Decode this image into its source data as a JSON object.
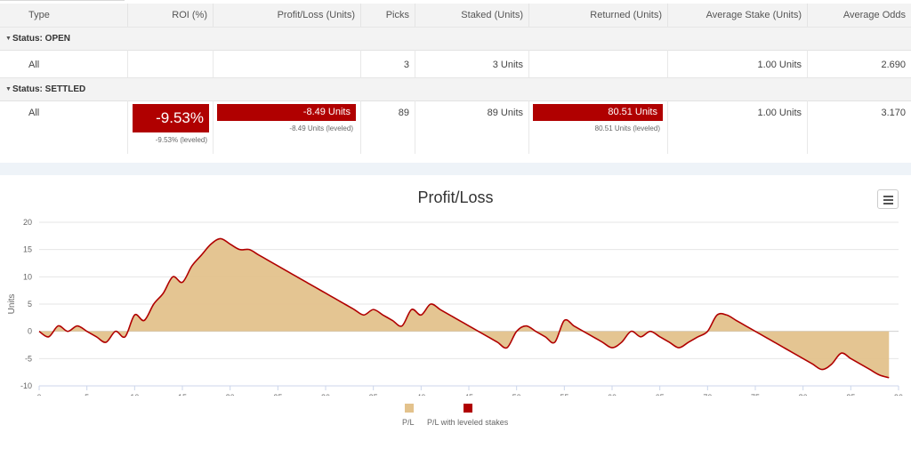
{
  "table": {
    "headers": [
      "Type",
      "ROI (%)",
      "Profit/Loss (Units)",
      "Picks",
      "Staked (Units)",
      "Returned (Units)",
      "Average Stake (Units)",
      "Average Odds"
    ],
    "groups": [
      {
        "label": "Status: OPEN",
        "row": {
          "type": "All",
          "roi": "",
          "roi_sub": "",
          "pl": "",
          "pl_sub": "",
          "picks": "3",
          "staked": "3 Units",
          "returned": "",
          "returned_sub": "",
          "avg_stake": "1.00 Units",
          "avg_odds": "2.690"
        }
      },
      {
        "label": "Status: SETTLED",
        "row": {
          "type": "All",
          "roi": "-9.53%",
          "roi_sub": "-9.53% (leveled)",
          "pl": "-8.49 Units",
          "pl_sub": "-8.49 Units (leveled)",
          "picks": "89",
          "staked": "89 Units",
          "returned": "80.51 Units",
          "returned_sub": "80.51 Units (leveled)",
          "avg_stake": "1.00 Units",
          "avg_odds": "3.170"
        }
      }
    ],
    "colors": {
      "negative_box": "#b00000"
    }
  },
  "chart": {
    "title": "Profit/Loss",
    "menu_icon": "hamburger-menu-icon"
  },
  "chart_data": {
    "type": "area",
    "title": "Profit/Loss",
    "xlabel": "",
    "ylabel": "Units",
    "xlim": [
      0,
      90
    ],
    "ylim": [
      -10,
      20
    ],
    "x_ticks": [
      0,
      5,
      10,
      15,
      20,
      25,
      30,
      35,
      40,
      45,
      50,
      55,
      60,
      65,
      70,
      75,
      80,
      85,
      90
    ],
    "y_ticks": [
      -10,
      -5,
      0,
      5,
      10,
      15,
      20
    ],
    "grid": true,
    "legend_position": "bottom-center",
    "series": [
      {
        "name": "P/L",
        "color": "#e3c28c",
        "kind": "area",
        "x": [
          0,
          1,
          2,
          3,
          4,
          5,
          6,
          7,
          8,
          9,
          10,
          11,
          12,
          13,
          14,
          15,
          16,
          17,
          18,
          19,
          20,
          21,
          22,
          23,
          24,
          25,
          26,
          27,
          28,
          29,
          30,
          31,
          32,
          33,
          34,
          35,
          36,
          37,
          38,
          39,
          40,
          41,
          42,
          43,
          44,
          45,
          46,
          47,
          48,
          49,
          50,
          51,
          52,
          53,
          54,
          55,
          56,
          57,
          58,
          59,
          60,
          61,
          62,
          63,
          64,
          65,
          66,
          67,
          68,
          69,
          70,
          71,
          72,
          73,
          74,
          75,
          76,
          77,
          78,
          79,
          80,
          81,
          82,
          83,
          84,
          85,
          86,
          87,
          88,
          89
        ],
        "y": [
          0,
          -1,
          1,
          0,
          1,
          0,
          -1,
          -2,
          0,
          -1,
          3,
          2,
          5,
          7,
          10,
          9,
          12,
          14,
          16,
          17,
          16,
          15,
          15,
          14,
          13,
          12,
          11,
          10,
          9,
          8,
          7,
          6,
          5,
          4,
          3,
          4,
          3,
          2,
          1,
          4,
          3,
          5,
          4,
          3,
          2,
          1,
          0,
          -1,
          -2,
          -3,
          0,
          1,
          0,
          -1,
          -2,
          2,
          1,
          0,
          -1,
          -2,
          -3,
          -2,
          0,
          -1,
          0,
          -1,
          -2,
          -3,
          -2,
          -1,
          0,
          3,
          3,
          2,
          1,
          0,
          -1,
          -2,
          -3,
          -4,
          -5,
          -6,
          -7,
          -6,
          -4,
          -5,
          -6,
          -7,
          -8,
          -8.5
        ]
      },
      {
        "name": "P/L with leveled stakes",
        "color": "#b00000",
        "kind": "line",
        "same_as": "P/L"
      }
    ]
  }
}
